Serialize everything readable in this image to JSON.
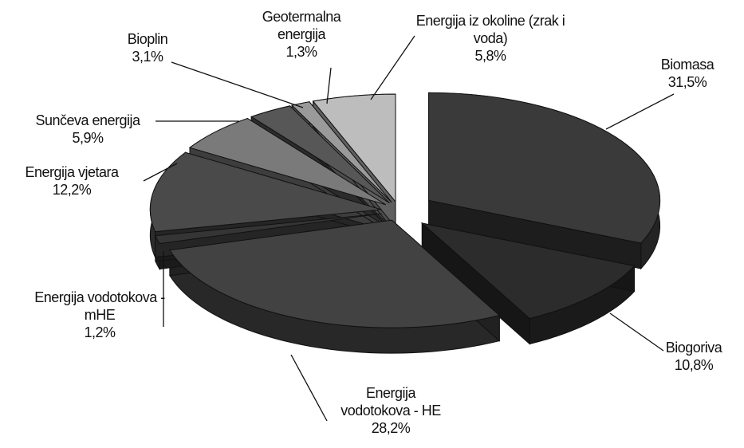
{
  "chart_data": {
    "type": "pie",
    "categories": [
      "Biomasa",
      "Biogoriva",
      "Energija vodotokova - HE",
      "Energija vodotokova - mHE",
      "Energija vjetara",
      "Sunčeva energija",
      "Bioplin",
      "Geotermalna energija",
      "Energija iz okoline (zrak i voda)"
    ],
    "values": [
      31.5,
      10.8,
      28.2,
      1.2,
      12.2,
      5.9,
      3.1,
      1.3,
      5.8
    ],
    "value_labels": [
      "31,5%",
      "10,8%",
      "28,2%",
      "1,2%",
      "12,2%",
      "5,9%",
      "3,1%",
      "1,3%",
      "5,8%"
    ],
    "colors": [
      "#3a3a3a",
      "#2c2c2c",
      "#424242",
      "#353535",
      "#4a4a4a",
      "#7a7a7a",
      "#575757",
      "#9a9a9a",
      "#bdbdbd"
    ]
  }
}
